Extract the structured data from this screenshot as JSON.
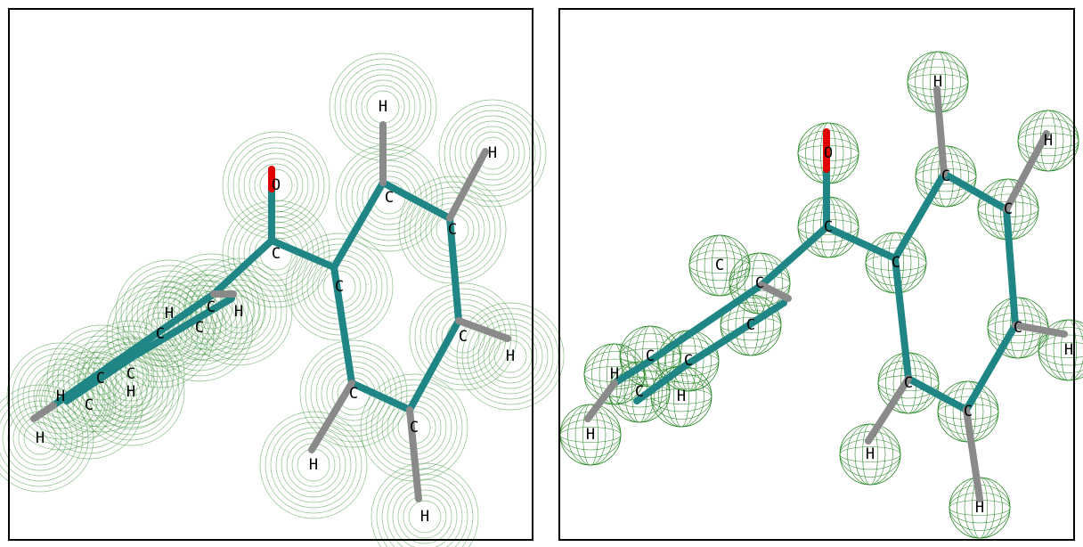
{
  "left_panel": {
    "atoms": [
      "O",
      "C",
      "H",
      "H",
      "C",
      "C",
      "C",
      "C",
      "H",
      "C",
      "C",
      "H",
      "H",
      "H",
      "C",
      "H",
      "C",
      "C",
      "C",
      "C",
      "H",
      "H",
      "C",
      "H"
    ]
  },
  "right_panel": {
    "atoms": [
      "O",
      "C",
      "H",
      "H",
      "C",
      "C",
      "C",
      "C",
      "H",
      "C",
      "C",
      "H",
      "H",
      "C",
      "C",
      "C",
      "C",
      "C",
      "H",
      "C",
      "H",
      "H"
    ]
  }
}
